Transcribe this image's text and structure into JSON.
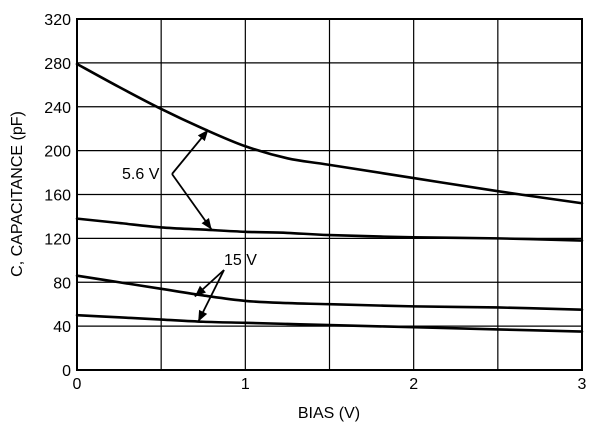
{
  "chart_data": {
    "type": "line",
    "title": "",
    "xlabel": "BIAS (V)",
    "ylabel": "C, CAPACITANCE (pF)",
    "xlim": [
      0,
      3
    ],
    "ylim": [
      0,
      320
    ],
    "x_ticks": [
      "0",
      "1",
      "2",
      "3"
    ],
    "y_ticks": [
      "0",
      "40",
      "80",
      "120",
      "160",
      "200",
      "240",
      "280",
      "320"
    ],
    "grid": true,
    "series": [
      {
        "x": [
          0,
          0.25,
          0.5,
          0.75,
          1.0,
          1.25,
          1.5,
          2.0,
          2.5,
          3.0
        ],
        "values": [
          279,
          258,
          238,
          220,
          204,
          193,
          187,
          175,
          163,
          152
        ]
      },
      {
        "x": [
          0,
          0.25,
          0.5,
          0.75,
          1.0,
          1.25,
          1.5,
          2.0,
          2.5,
          3.0
        ],
        "values": [
          138,
          134,
          130,
          128,
          126,
          125,
          123,
          121,
          120,
          118
        ]
      },
      {
        "x": [
          0,
          0.25,
          0.5,
          0.75,
          1.0,
          1.25,
          1.5,
          2.0,
          2.5,
          3.0
        ],
        "values": [
          86,
          80,
          74,
          68,
          63,
          61,
          60,
          58,
          57,
          55
        ]
      },
      {
        "x": [
          0,
          0.25,
          0.5,
          0.75,
          1.0,
          1.25,
          1.5,
          2.0,
          2.5,
          3.0
        ],
        "values": [
          50,
          48,
          46,
          44,
          43,
          42,
          41,
          39,
          37,
          35
        ]
      }
    ],
    "annotations": [
      {
        "text": "5.6 V",
        "targets": [
          [
            0.78,
            219
          ],
          [
            0.8,
            128
          ]
        ]
      },
      {
        "text": "15 V",
        "targets": [
          [
            0.7,
            67
          ],
          [
            0.72,
            44
          ]
        ]
      }
    ]
  }
}
